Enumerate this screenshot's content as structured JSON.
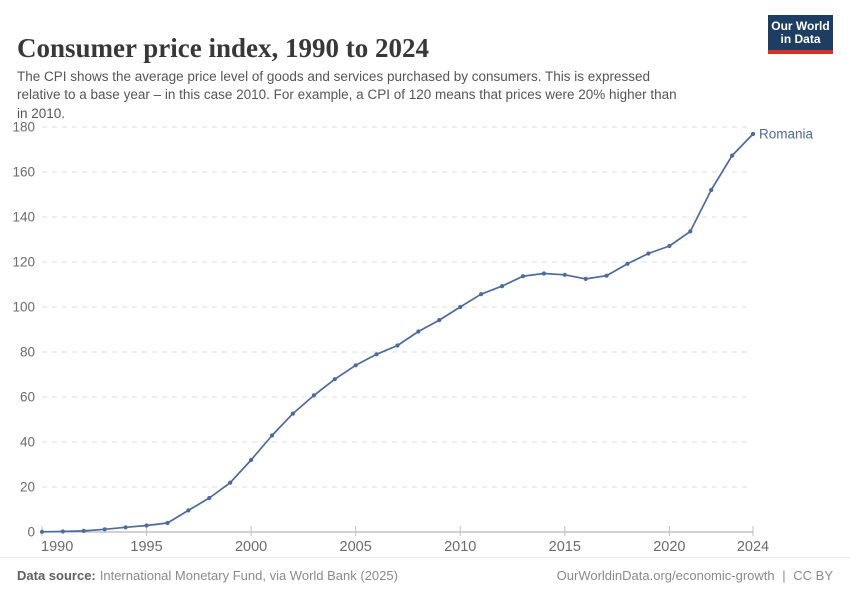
{
  "header": {
    "title": "Consumer price index, 1990 to 2024",
    "subtitle": "The CPI shows the average price level of goods and services purchased by consumers. This is expressed\nrelative to a base year – in this case 2010. For example, a CPI of 120 means that prices were 20% higher than\nin 2010.",
    "logo": {
      "line1": "Our World",
      "line2": "in Data"
    }
  },
  "chart_data": {
    "type": "line",
    "title": "Consumer price index, 1990 to 2024",
    "xlabel": "",
    "ylabel": "",
    "xlim": [
      1990,
      2024
    ],
    "ylim": [
      0,
      180
    ],
    "x_ticks": [
      1990,
      1995,
      2000,
      2005,
      2010,
      2015,
      2020,
      2024
    ],
    "y_ticks": [
      0,
      20,
      40,
      60,
      80,
      100,
      120,
      140,
      160,
      180
    ],
    "grid": "horizontal-dashed",
    "legend_position": "end-of-line-label",
    "x": [
      1990,
      1991,
      1992,
      1993,
      1994,
      1995,
      1996,
      1997,
      1998,
      1999,
      2000,
      2001,
      2002,
      2003,
      2004,
      2005,
      2006,
      2007,
      2008,
      2009,
      2010,
      2011,
      2012,
      2013,
      2014,
      2015,
      2016,
      2017,
      2018,
      2019,
      2020,
      2021,
      2022,
      2023,
      2024
    ],
    "series": [
      {
        "name": "Romania",
        "color": "#4c6a9c",
        "values": [
          0.1,
          0.2,
          0.5,
          1.2,
          2.1,
          2.9,
          4.0,
          9.6,
          15.1,
          21.9,
          32.0,
          42.9,
          52.6,
          60.7,
          67.9,
          74.1,
          79.0,
          82.9,
          89.1,
          94.2,
          100.0,
          105.7,
          109.3,
          113.7,
          114.9,
          114.3,
          112.5,
          113.9,
          119.2,
          123.8,
          127.1,
          133.6,
          152.0,
          167.3,
          176.9
        ]
      }
    ],
    "end_label": "Romania"
  },
  "footer": {
    "source_label": "Data source:",
    "source_text": "International Monetary Fund, via World Bank (2025)",
    "url_text": "OurWorldinData.org/economic-growth",
    "divider": "|",
    "license_text": "CC BY"
  },
  "colors": {
    "series": "#4c6a9c",
    "gridline": "#dcdcdc",
    "axis_line": "#a3a3a3",
    "tick": "#c0c0c0",
    "axis_label": "#6b6b6b",
    "title": "#383838",
    "subtitle": "#555555",
    "footer_text": "#8a8a8a",
    "logo_bg": "#1d3d63",
    "logo_stripe": "#d5332a"
  }
}
